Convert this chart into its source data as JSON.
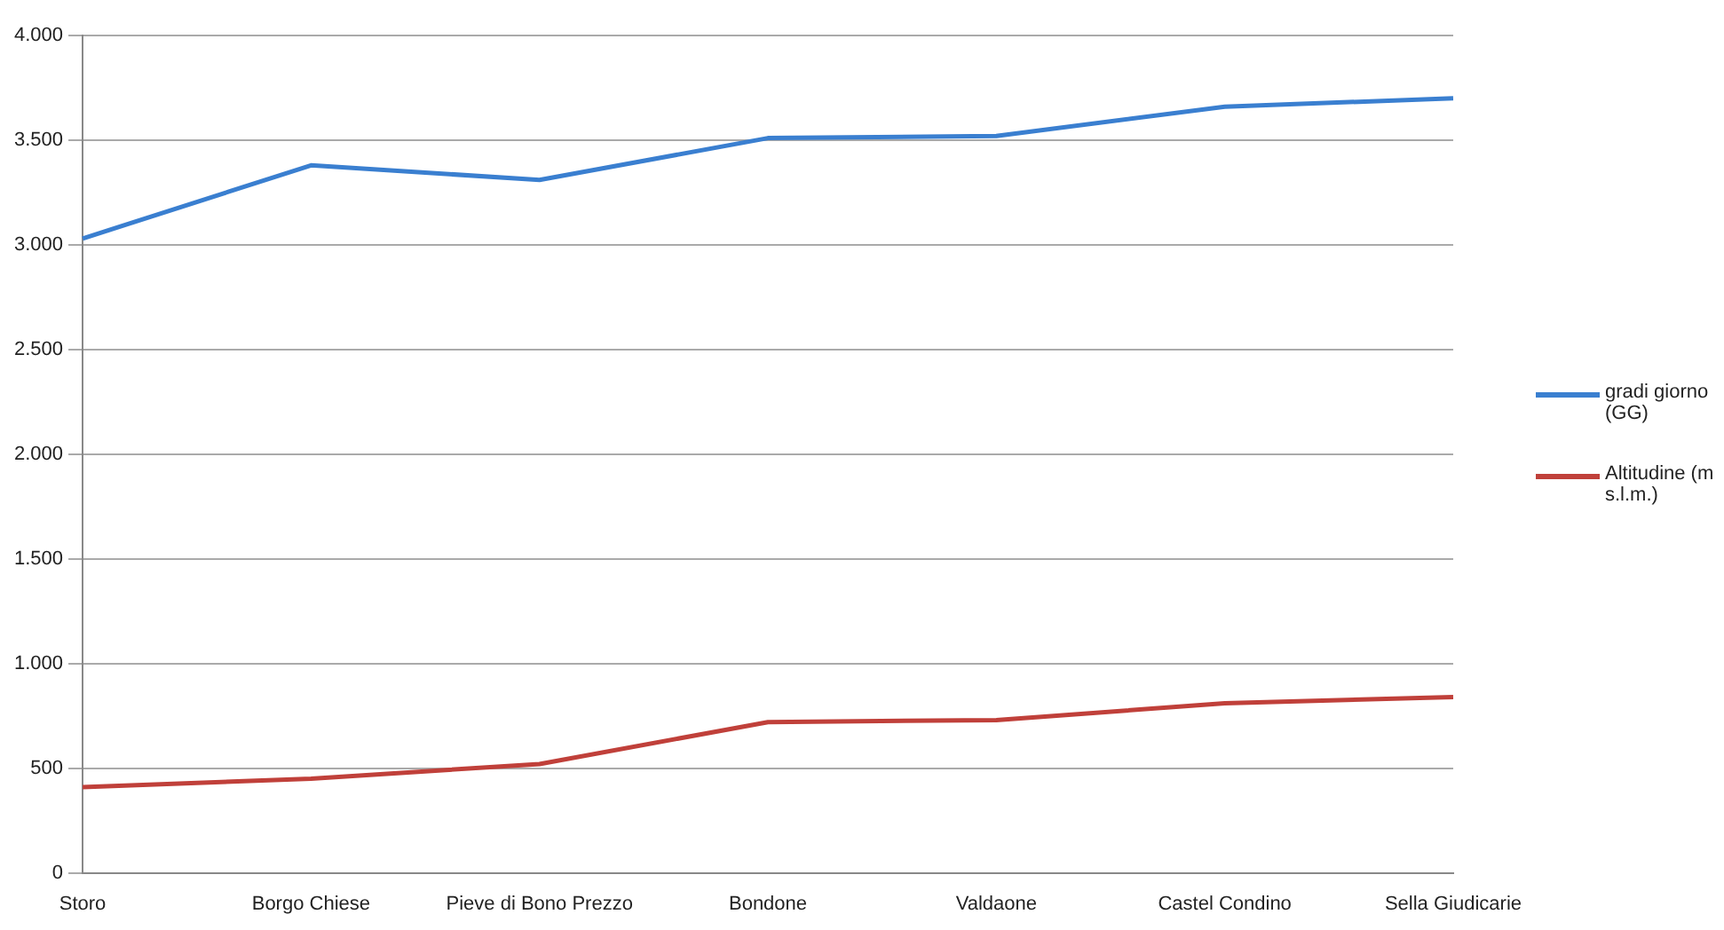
{
  "chart_data": {
    "type": "line",
    "categories": [
      "Storo",
      "Borgo Chiese",
      "Pieve di Bono Prezzo",
      "Bondone",
      "Valdaone",
      "Castel Condino",
      "Sella Giudicarie"
    ],
    "series": [
      {
        "name": "gradi giorno (GG)",
        "color": "#3a7fd0",
        "values": [
          3030,
          3380,
          3310,
          3510,
          3520,
          3660,
          3700
        ]
      },
      {
        "name": "Altitudine (m s.l.m.)",
        "color": "#c0403a",
        "values": [
          410,
          450,
          520,
          720,
          730,
          810,
          840
        ]
      }
    ],
    "ylim": [
      0,
      4000
    ],
    "yticks": [
      {
        "value": 0,
        "label": "0"
      },
      {
        "value": 500,
        "label": "500"
      },
      {
        "value": 1000,
        "label": "1.000"
      },
      {
        "value": 1500,
        "label": "1.500"
      },
      {
        "value": 2000,
        "label": "2.000"
      },
      {
        "value": 2500,
        "label": "2.500"
      },
      {
        "value": 3000,
        "label": "3.000"
      },
      {
        "value": 3500,
        "label": "3.500"
      },
      {
        "value": 4000,
        "label": "4.000"
      }
    ],
    "grid": "y",
    "legend": "right",
    "marker": "none"
  }
}
